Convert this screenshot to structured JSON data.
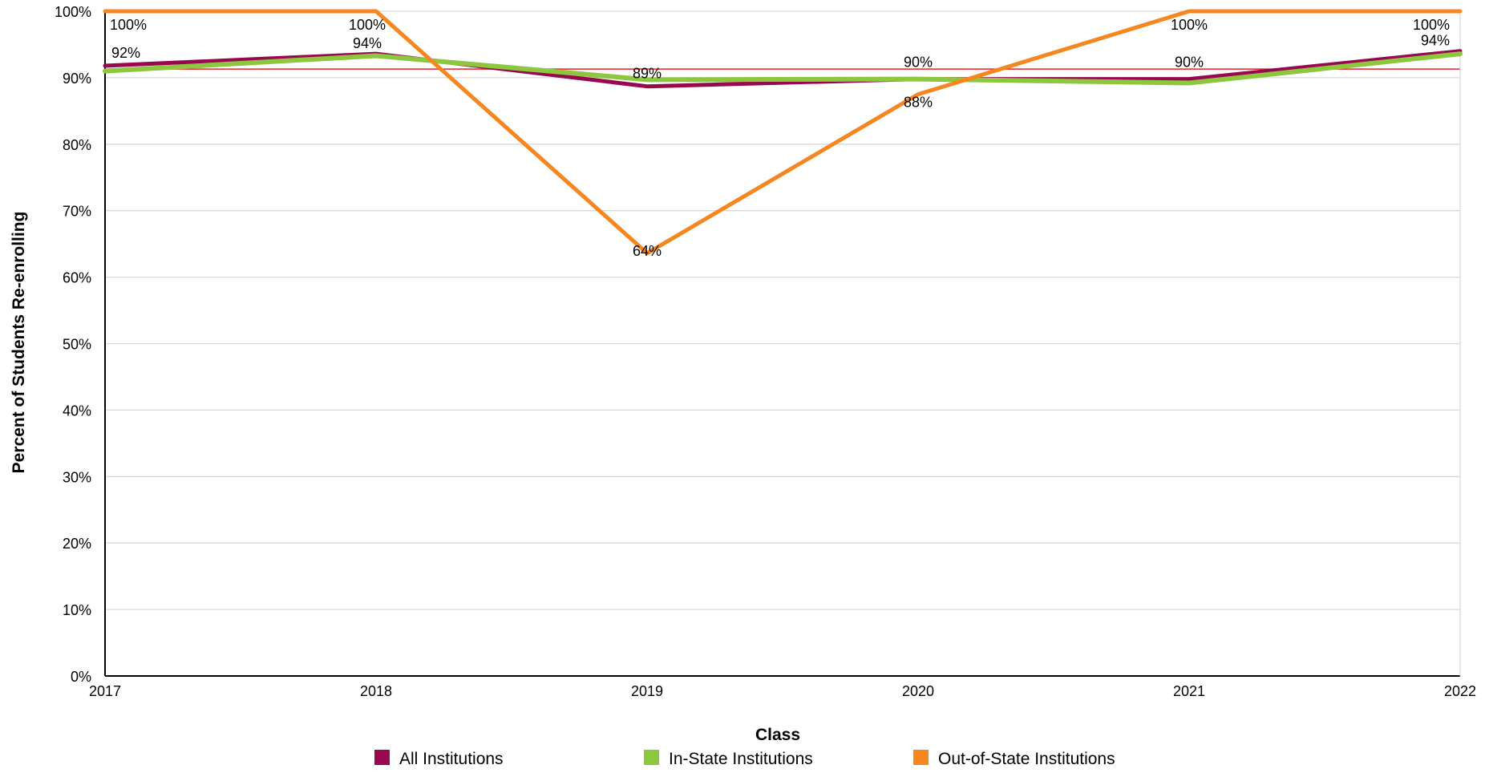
{
  "chart_data": {
    "type": "line",
    "title": "",
    "xlabel": "Class",
    "ylabel": "Percent of Students Re-enrolling",
    "x": [
      "2017",
      "2018",
      "2019",
      "2020",
      "2021",
      "2022"
    ],
    "ylim": [
      0,
      100
    ],
    "yticks": [
      0,
      10,
      20,
      30,
      40,
      50,
      60,
      70,
      80,
      90,
      100
    ],
    "ytick_suffix": "%",
    "grid": true,
    "legend_position": "bottom",
    "reference_line": {
      "value": 91.3,
      "color": "#e8202a"
    },
    "series": [
      {
        "name": "All Institutions",
        "color": "#97084f",
        "values": [
          91.8,
          93.6,
          88.7,
          89.8,
          89.8,
          94.0
        ],
        "labels": [
          "92%",
          "94%",
          "89%",
          "90%",
          "90%",
          "94%"
        ]
      },
      {
        "name": "In-State Institutions",
        "color": "#8dc63f",
        "values": [
          91.0,
          93.3,
          89.7,
          89.8,
          89.2,
          93.6
        ],
        "labels": [
          "",
          "",
          "",
          "",
          "",
          ""
        ]
      },
      {
        "name": "Out-of-State Institutions",
        "color": "#f6861f",
        "values": [
          100,
          100,
          63.6,
          87.5,
          100,
          100
        ],
        "labels": [
          "100%",
          "100%",
          "64%",
          "88%",
          "100%",
          "100%"
        ]
      }
    ]
  }
}
